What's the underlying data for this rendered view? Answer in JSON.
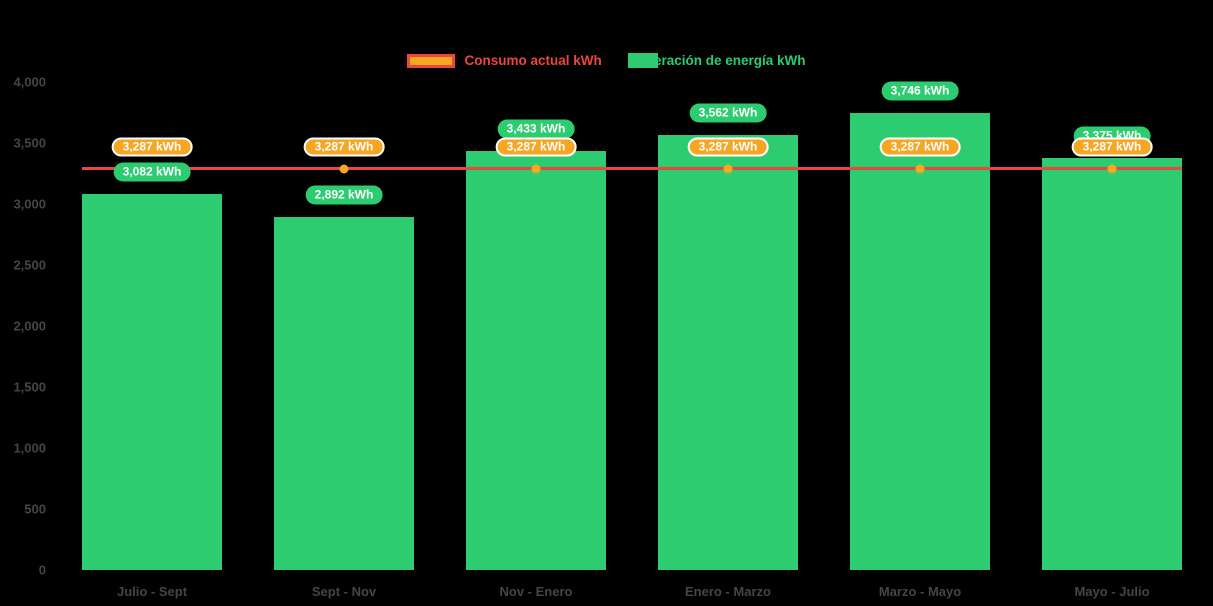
{
  "canvas": {
    "background": "#000000"
  },
  "legend": {
    "items": [
      {
        "key": "consumo-actual",
        "label": "Consumo actual kWh",
        "swatch_type": "line",
        "swatch_fill": "#f6a623",
        "swatch_border": "#e8483e",
        "text_color": "#e8483e"
      },
      {
        "key": "generacion-energia",
        "label": "Generación de energía kWh",
        "swatch_type": "bar",
        "swatch_fill": "#2ecc71",
        "swatch_border": "#2ecc71",
        "text_color": "#2ecc71"
      }
    ]
  },
  "axes": {
    "text_color": "#454545",
    "y_tick_values": [
      0,
      500,
      1000,
      1500,
      2000,
      2500,
      3000,
      3500,
      4000
    ],
    "y_tick_labels": [
      "0",
      "500",
      "1,000",
      "1,500",
      "2,000",
      "2,500",
      "3,000",
      "3,500",
      "4,000"
    ]
  },
  "chart_data": {
    "type": "bar",
    "title": "",
    "categories": [
      "Julio - Sept",
      "Sept - Nov",
      "Nov - Enero",
      "Enero - Marzo",
      "Marzo - Mayo",
      "Mayo - Julio"
    ],
    "series": [
      {
        "name": "Generación de energía kWh",
        "type": "bar",
        "color": "#2ecc71",
        "values": [
          3082,
          2892,
          3433,
          3562,
          3746,
          3375
        ],
        "data_labels": [
          "3,082 kWh",
          "2,892 kWh",
          "3,433 kWh",
          "3,562 kWh",
          "3,746 kWh",
          "3,375 kWh"
        ],
        "label_style": {
          "bg": "#2ecc71",
          "text": "#ffffff"
        }
      },
      {
        "name": "Consumo actual kWh",
        "type": "line",
        "color": "#e8483e",
        "marker_color": "#f6a623",
        "values": [
          3287,
          3287,
          3287,
          3287,
          3287,
          3287
        ],
        "data_labels": [
          "3,287 kWh",
          "3,287 kWh",
          "3,287 kWh",
          "3,287 kWh",
          "3,287 kWh",
          "3,287 kWh"
        ],
        "label_style": {
          "bg": "#f6a623",
          "text": "#ffffff",
          "border": "#ffffff"
        }
      }
    ],
    "ylim": [
      0,
      4000
    ],
    "grid": false,
    "legend_position": "top-center",
    "xlabel": "",
    "ylabel": ""
  }
}
